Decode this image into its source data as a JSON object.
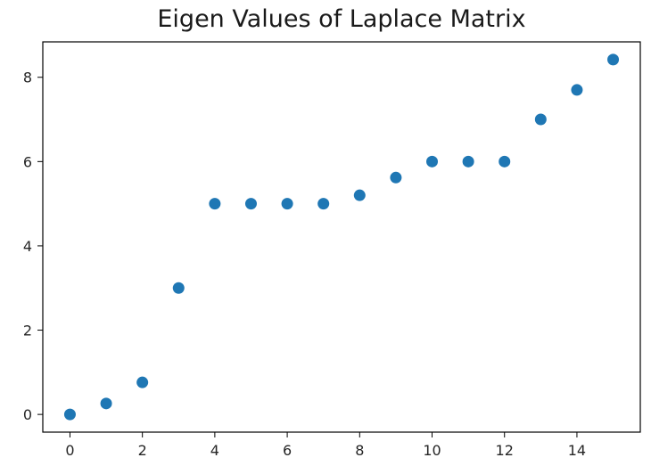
{
  "chart_data": {
    "type": "scatter",
    "title": "Eigen Values of Laplace Matrix",
    "xlabel": "",
    "ylabel": "",
    "x": [
      0,
      1,
      2,
      3,
      4,
      5,
      6,
      7,
      8,
      9,
      10,
      11,
      12,
      13,
      14,
      15
    ],
    "y": [
      0.0,
      0.26,
      0.76,
      3.0,
      5.0,
      5.0,
      5.0,
      5.0,
      5.2,
      5.62,
      6.0,
      6.0,
      6.0,
      7.0,
      7.7,
      8.42
    ],
    "xlim": [
      -0.75,
      15.75
    ],
    "ylim": [
      -0.42,
      8.84
    ],
    "xticks": [
      0,
      2,
      4,
      6,
      8,
      10,
      12,
      14
    ],
    "yticks": [
      0,
      2,
      4,
      6,
      8
    ],
    "grid": false,
    "legend": "none",
    "marker_color": "#1f77b4",
    "axis_color": "#000000"
  }
}
